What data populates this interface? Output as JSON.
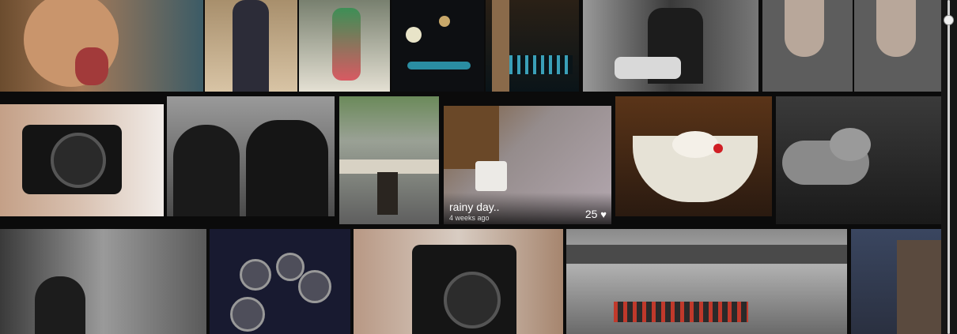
{
  "gallery": {
    "featured_caption": {
      "title": "rainy day..",
      "time": "4 weeks ago",
      "likes": "25",
      "heart_icon": "heart-icon"
    }
  }
}
